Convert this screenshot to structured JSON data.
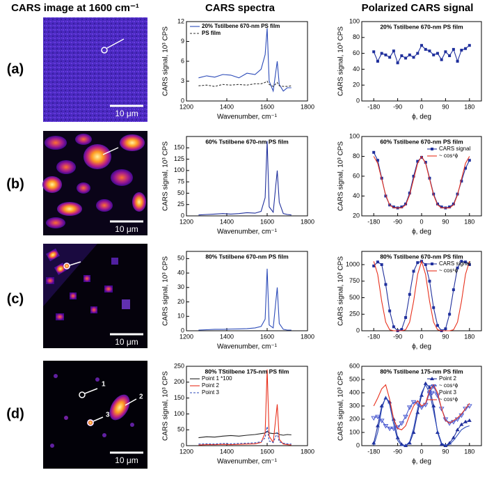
{
  "headers": [
    "CARS image at 1600 cm⁻¹",
    "CARS spectra",
    "Polarized CARS signal"
  ],
  "rows": [
    {
      "label": "(a)",
      "scale_bar": "10 μm"
    },
    {
      "label": "(b)",
      "scale_bar": "10 μm"
    },
    {
      "label": "(c)",
      "scale_bar": "10 μm"
    },
    {
      "label": "(d)",
      "scale_bar": "10 μm"
    }
  ],
  "point_labels": [
    "1",
    "2",
    "3"
  ],
  "chart_data": [
    {
      "type": "line",
      "xlabel": "Wavenumber, cm⁻¹",
      "ylabel": "CARS signal, 10³ CPS",
      "legend": "upper left",
      "x": [
        1260,
        1300,
        1340,
        1380,
        1420,
        1460,
        1500,
        1540,
        1570,
        1590,
        1600,
        1610,
        1630,
        1650,
        1660,
        1680,
        1700,
        1720
      ],
      "xlim": [
        1200,
        1800
      ],
      "xticks": [
        1200,
        1400,
        1600,
        1800
      ],
      "ylim": [
        0,
        12
      ],
      "yticks": [
        0,
        3,
        6,
        9,
        12
      ],
      "series": [
        {
          "name": "20% Tstilbene 670-nm PS film",
          "color": "#2b4ab8",
          "values": [
            3.5,
            3.8,
            3.6,
            4,
            3.9,
            3.5,
            4.2,
            4,
            4.8,
            7,
            11,
            3,
            1.5,
            6,
            2.5,
            1.5,
            2,
            2
          ]
        },
        {
          "name": "PS film",
          "color": "#333333",
          "style": "dashed",
          "values": [
            2.3,
            2.4,
            2.2,
            2.5,
            2.4,
            2.5,
            2.4,
            2.6,
            2.6,
            2.8,
            3,
            2.5,
            2.2,
            2.8,
            2.3,
            2.2,
            2.2,
            2.3
          ]
        }
      ]
    },
    {
      "type": "line",
      "title": "20% Tstilbene 670-nm PS film",
      "xlabel": "ϕ, deg",
      "ylabel": "CARS signal, 10³ CPS",
      "legend": "upper right",
      "x": [
        -180,
        -165,
        -150,
        -135,
        -120,
        -105,
        -90,
        -75,
        -60,
        -45,
        -30,
        -15,
        0,
        15,
        30,
        45,
        60,
        75,
        90,
        105,
        120,
        135,
        150,
        165,
        180
      ],
      "xlim": [
        -225,
        225
      ],
      "xticks": [
        -180,
        -90,
        0,
        90,
        180
      ],
      "ylim": [
        0,
        100
      ],
      "yticks": [
        0,
        20,
        40,
        60,
        80,
        100
      ],
      "series": [
        {
          "color": "#1f2f9c",
          "marker": "square",
          "values": [
            62,
            50,
            60,
            58,
            55,
            63,
            48,
            57,
            54,
            58,
            55,
            60,
            70,
            65,
            63,
            58,
            60,
            52,
            62,
            57,
            65,
            50,
            64,
            66,
            70
          ]
        }
      ]
    },
    {
      "type": "line",
      "title": "60% Tstilbene 670-nm PS film",
      "xlabel": "Wavenumber, cm⁻¹",
      "ylabel": "CARS signal, 10³ CPS",
      "legend": "upper left",
      "x": [
        1260,
        1300,
        1340,
        1380,
        1420,
        1460,
        1500,
        1540,
        1570,
        1590,
        1600,
        1610,
        1630,
        1650,
        1660,
        1680,
        1700,
        1720
      ],
      "xlim": [
        1200,
        1800
      ],
      "xticks": [
        1200,
        1400,
        1600,
        1800
      ],
      "ylim": [
        0,
        175
      ],
      "yticks": [
        0,
        25,
        50,
        75,
        100,
        125,
        150
      ],
      "series": [
        {
          "color": "#1f2f9c",
          "values": [
            2,
            3,
            4,
            5,
            4,
            5,
            7,
            6,
            10,
            40,
            165,
            20,
            8,
            100,
            30,
            5,
            3,
            2
          ]
        }
      ]
    },
    {
      "type": "line",
      "title": "60% Tstilbene 670-nm PS film",
      "xlabel": "ϕ, deg",
      "ylabel": "CARS signal, 10³ CPS",
      "legend": "upper right",
      "x": [
        -180,
        -165,
        -150,
        -135,
        -120,
        -105,
        -90,
        -75,
        -60,
        -45,
        -30,
        -15,
        0,
        15,
        30,
        45,
        60,
        75,
        90,
        105,
        120,
        135,
        150,
        165,
        180
      ],
      "xlim": [
        -225,
        225
      ],
      "xticks": [
        -180,
        -90,
        0,
        90,
        180
      ],
      "ylim": [
        20,
        100
      ],
      "yticks": [
        20,
        40,
        60,
        80,
        100
      ],
      "series": [
        {
          "name": "CARS signal",
          "color": "#1f2f9c",
          "marker": "square",
          "values": [
            84,
            76,
            58,
            40,
            31,
            29,
            28,
            29,
            32,
            43,
            60,
            75,
            79,
            74,
            58,
            42,
            32,
            29,
            28,
            29,
            32,
            42,
            55,
            68,
            76
          ]
        },
        {
          "name": "~ cos⁴ϕ",
          "color": "#e8301c",
          "values": [
            80,
            73,
            57,
            41,
            31,
            28,
            28,
            28,
            31,
            41,
            57,
            73,
            80,
            73,
            57,
            41,
            31,
            28,
            28,
            28,
            31,
            41,
            57,
            73,
            80
          ]
        }
      ]
    },
    {
      "type": "line",
      "title": "80% Tstilbene 670-nm PS film",
      "xlabel": "Wavenumber, cm⁻¹",
      "ylabel": "CARS signal, 10³ CPS",
      "legend": "upper left",
      "x": [
        1260,
        1300,
        1340,
        1380,
        1420,
        1460,
        1500,
        1540,
        1570,
        1590,
        1600,
        1610,
        1630,
        1650,
        1660,
        1680,
        1700,
        1720
      ],
      "xlim": [
        1200,
        1800
      ],
      "xticks": [
        1200,
        1400,
        1600,
        1800
      ],
      "ylim": [
        0,
        55
      ],
      "yticks": [
        0,
        10,
        20,
        30,
        40,
        50
      ],
      "series": [
        {
          "color": "#2b4ab8",
          "values": [
            0.5,
            0.7,
            1,
            1,
            1.2,
            1.3,
            1.5,
            2,
            3,
            8,
            43,
            4,
            2,
            30,
            5,
            1,
            0.5,
            0.5
          ]
        }
      ]
    },
    {
      "type": "line",
      "title": "80% Tstilbene 670-nm PS film",
      "xlabel": "ϕ, deg",
      "ylabel": "CARS signal, 10³ CPS",
      "legend": "upper right",
      "x": [
        -180,
        -165,
        -150,
        -135,
        -120,
        -105,
        -90,
        -75,
        -60,
        -45,
        -30,
        -15,
        0,
        15,
        30,
        45,
        60,
        75,
        90,
        105,
        120,
        135,
        150,
        165,
        180
      ],
      "xlim": [
        -225,
        225
      ],
      "xticks": [
        -180,
        -90,
        0,
        90,
        180
      ],
      "ylim": [
        0,
        1200
      ],
      "yticks": [
        0,
        250,
        500,
        750,
        1000
      ],
      "series": [
        {
          "name": "CARS signal",
          "color": "#1f2f9c",
          "marker": "square",
          "values": [
            980,
            1040,
            1000,
            700,
            300,
            60,
            0,
            20,
            200,
            550,
            900,
            1030,
            1050,
            1000,
            750,
            350,
            80,
            0,
            30,
            250,
            620,
            950,
            1050,
            1040,
            1000
          ]
        },
        {
          "name": "~ cos⁶ϕ",
          "color": "#e8301c",
          "values": [
            1050,
            853,
            443,
            131,
            16,
            0,
            0,
            0,
            16,
            131,
            443,
            853,
            1050,
            853,
            443,
            131,
            16,
            0,
            0,
            0,
            16,
            131,
            443,
            853,
            1050
          ]
        }
      ]
    },
    {
      "type": "line",
      "title": "80% TStilbene 175-nm PS film",
      "xlabel": "Wavenumber, cm⁻¹",
      "ylabel": "CARS signal, 10³ CPS",
      "legend": "upper left",
      "x": [
        1260,
        1300,
        1340,
        1380,
        1420,
        1460,
        1500,
        1540,
        1570,
        1590,
        1600,
        1610,
        1630,
        1650,
        1660,
        1680,
        1700,
        1720
      ],
      "xlim": [
        1200,
        1800
      ],
      "xticks": [
        1200,
        1400,
        1600,
        1800
      ],
      "ylim": [
        0,
        250
      ],
      "yticks": [
        0,
        50,
        100,
        150,
        200,
        250
      ],
      "series": [
        {
          "name": "Point 1 *100",
          "color": "#222222",
          "values": [
            25,
            28,
            27,
            30,
            32,
            30,
            33,
            35,
            38,
            40,
            45,
            40,
            38,
            40,
            35,
            33,
            35,
            34
          ]
        },
        {
          "name": "Point 2",
          "color": "#e8301c",
          "values": [
            2,
            3,
            3,
            4,
            3,
            4,
            5,
            6,
            10,
            40,
            240,
            30,
            10,
            130,
            20,
            5,
            3,
            2
          ]
        },
        {
          "name": "Point 3",
          "color": "#2b4ab8",
          "style": "dashed",
          "values": [
            5,
            6,
            5,
            7,
            6,
            7,
            8,
            9,
            12,
            25,
            60,
            15,
            10,
            40,
            12,
            8,
            6,
            5
          ]
        }
      ]
    },
    {
      "type": "line",
      "title": "80% Tstilbene 175-nm PS film",
      "xlabel": "ϕ, deg",
      "ylabel": "CARS signal, 10³ CPS",
      "legend": "upper right",
      "x": [
        -180,
        -165,
        -150,
        -135,
        -120,
        -105,
        -90,
        -75,
        -60,
        -45,
        -30,
        -15,
        0,
        15,
        30,
        45,
        60,
        75,
        90,
        105,
        120,
        135,
        150,
        165,
        180
      ],
      "xlim": [
        -225,
        225
      ],
      "xticks": [
        -180,
        -90,
        0,
        90,
        180
      ],
      "ylim": [
        0,
        600
      ],
      "yticks": [
        0,
        100,
        200,
        300,
        400,
        500,
        600
      ],
      "series": [
        {
          "name": "Point 2",
          "color": "#1f2f9c",
          "marker": "triangle",
          "values": [
            20,
            150,
            300,
            360,
            330,
            200,
            60,
            10,
            0,
            20,
            100,
            250,
            380,
            470,
            440,
            300,
            100,
            10,
            0,
            20,
            60,
            120,
            160,
            180,
            190
          ]
        },
        {
          "name": "~ cos⁴ϕ",
          "color": "#2b4ab8",
          "values": [
            0,
            100,
            280,
            370,
            310,
            160,
            40,
            0,
            0,
            30,
            130,
            280,
            400,
            460,
            400,
            260,
            110,
            20,
            0,
            10,
            40,
            80,
            120,
            140,
            150
          ]
        },
        {
          "name": "Point 3",
          "color": "#4a5ad0",
          "marker": "triangle-down",
          "values": [
            210,
            220,
            190,
            150,
            130,
            130,
            140,
            170,
            220,
            290,
            330,
            320,
            290,
            310,
            400,
            450,
            380,
            280,
            200,
            170,
            180,
            200,
            230,
            280,
            300
          ]
        },
        {
          "name": "~ cos⁶ϕ",
          "color": "#e8301c",
          "values": [
            300,
            360,
            430,
            460,
            350,
            200,
            130,
            120,
            150,
            230,
            300,
            340,
            300,
            320,
            420,
            460,
            400,
            280,
            190,
            170,
            190,
            210,
            240,
            280,
            320
          ]
        }
      ]
    }
  ]
}
